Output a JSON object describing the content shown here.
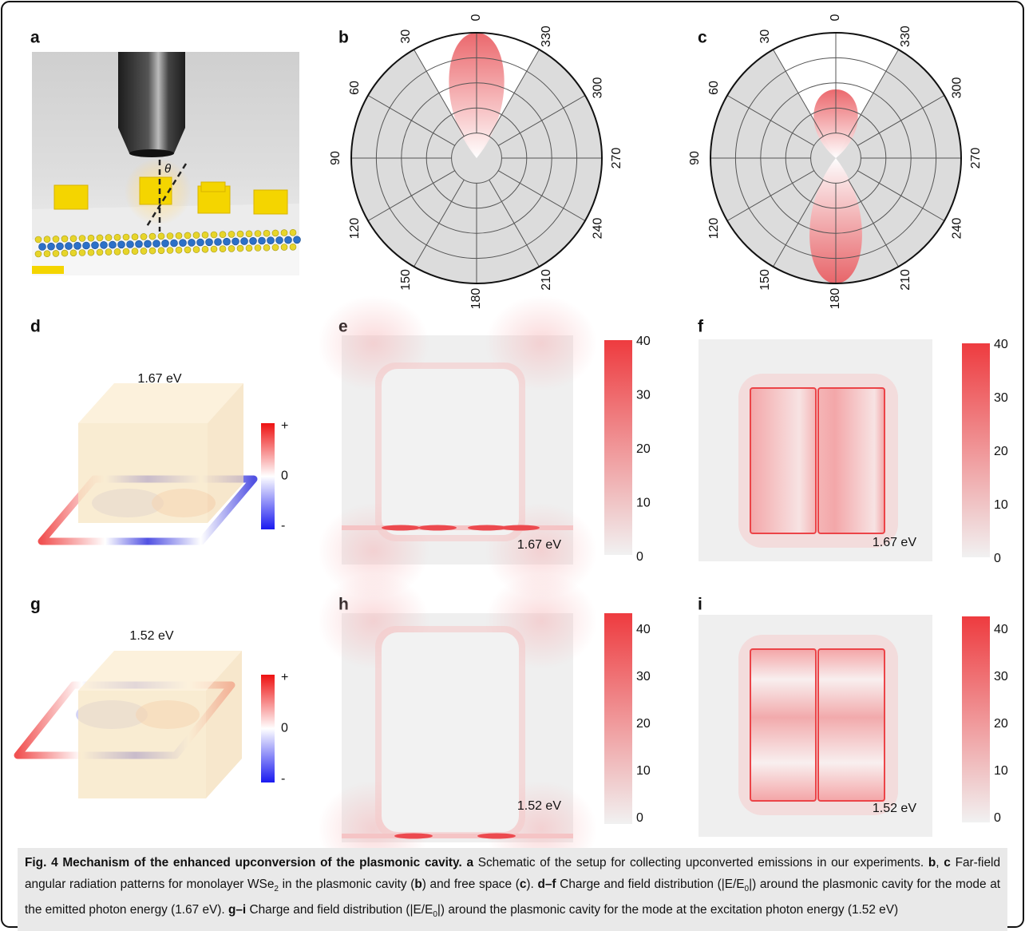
{
  "panels": {
    "a": {
      "label": "a",
      "angle_symbol": "θ"
    },
    "b": {
      "label": "b",
      "angle_labels": [
        0,
        330,
        300,
        270,
        240,
        210,
        180,
        150,
        120,
        90,
        60,
        30
      ]
    },
    "c": {
      "label": "c",
      "angle_labels": [
        0,
        330,
        300,
        270,
        240,
        210,
        180,
        150,
        120,
        90,
        60,
        30
      ]
    },
    "d": {
      "label": "d",
      "energy": "1.67 eV",
      "charge_labels": [
        "+",
        "0",
        "-"
      ]
    },
    "e": {
      "label": "e",
      "energy": "1.67 eV",
      "colorbar_ticks": [
        0,
        10,
        20,
        30,
        40
      ]
    },
    "f": {
      "label": "f",
      "energy": "1.67 eV",
      "colorbar_ticks": [
        0,
        10,
        20,
        30,
        40
      ]
    },
    "g": {
      "label": "g",
      "energy": "1.52 eV",
      "charge_labels": [
        "+",
        "0",
        "-"
      ]
    },
    "h": {
      "label": "h",
      "energy": "1.52 eV",
      "colorbar_ticks": [
        0,
        10,
        20,
        30,
        40
      ]
    },
    "i": {
      "label": "i",
      "energy": "1.52 eV",
      "colorbar_ticks": [
        0,
        10,
        20,
        30,
        40
      ]
    }
  },
  "caption": {
    "parts": [
      "Fig. 4 Mechanism of the enhanced upconversion of the plasmonic cavity.",
      "a",
      "Schematic of the setup for collecting upconverted emissions in our experiments.",
      "b",
      ",",
      "c",
      "Far-field angular radiation patterns for monolayer WSe",
      "2",
      "in the plasmonic cavity (",
      "b",
      ") and free space (",
      "c",
      ").",
      "d–f",
      "Charge and field distribution (|E/E",
      "0",
      "|) around the plasmonic cavity for the mode at the emitted photon energy (1.67 eV).",
      "g–i",
      "Charge and field distribution (|E/E",
      "0",
      "|) around the plasmonic cavity for the mode at the excitation photon energy (1.52 eV)"
    ]
  }
}
